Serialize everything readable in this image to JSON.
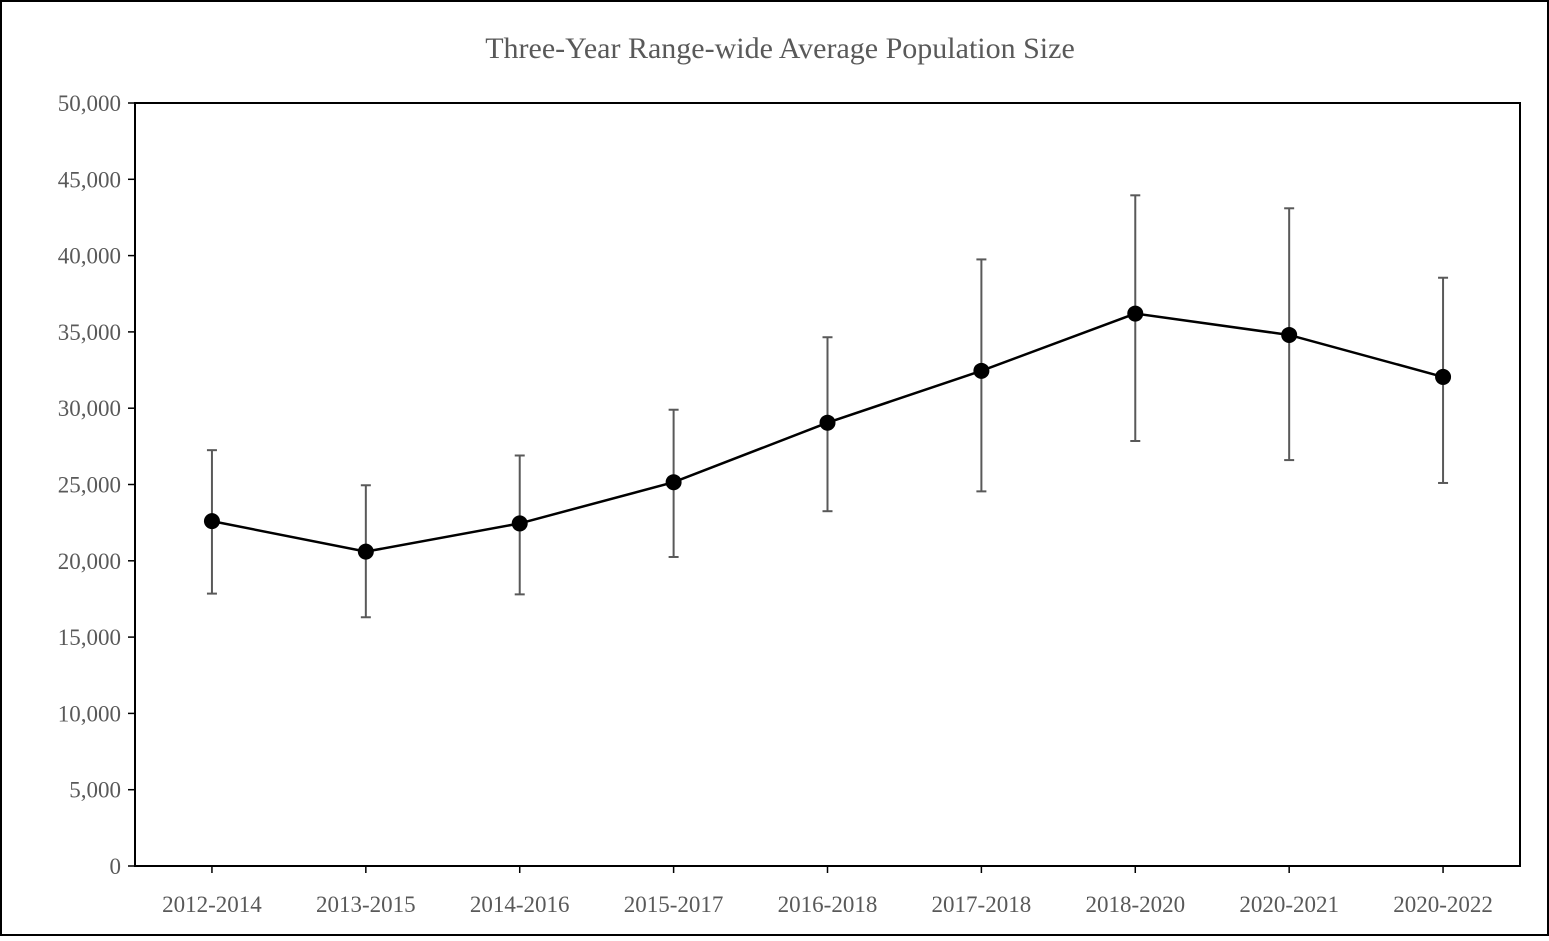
{
  "chart_data": {
    "type": "line",
    "title": "Three-Year Range-wide Average Population Size",
    "xlabel": "",
    "ylabel": "",
    "categories": [
      "2012-2014",
      "2013-2015",
      "2014-2016",
      "2015-2017",
      "2016-2018",
      "2017-2018",
      "2018-2020",
      "2020-2021",
      "2020-2022"
    ],
    "series": [
      {
        "values": [
          22600,
          20600,
          22450,
          25150,
          29050,
          32450,
          36200,
          34800,
          32050
        ],
        "error_low": [
          17850,
          16300,
          17800,
          20250,
          23250,
          24550,
          27850,
          26600,
          25100
        ],
        "error_high": [
          27250,
          24950,
          26900,
          29900,
          34650,
          39750,
          43950,
          43100,
          38550
        ]
      }
    ],
    "ylim": [
      0,
      50000
    ],
    "yticks": [
      0,
      5000,
      10000,
      15000,
      20000,
      25000,
      30000,
      35000,
      40000,
      45000,
      50000
    ],
    "ytick_labels": [
      "0",
      "5,000",
      "10,000",
      "15,000",
      "20,000",
      "25,000",
      "30,000",
      "35,000",
      "40,000",
      "45,000",
      "50,000"
    ],
    "grid": false,
    "legend": "none",
    "colors": {
      "line": "#000000",
      "marker": "#000000",
      "error_bar": "#595959",
      "axis": "#000000",
      "text": "#595959"
    }
  }
}
